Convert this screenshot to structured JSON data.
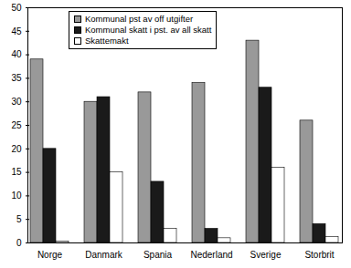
{
  "chart_data": {
    "type": "bar",
    "categories": [
      "Norge",
      "Danmark",
      "Spania",
      "Nederland",
      "Sverige",
      "Storbrit"
    ],
    "series": [
      {
        "name": "Kommunal pst av off utgifter",
        "color": "#999999",
        "values": [
          39,
          30,
          32,
          34,
          43,
          26
        ]
      },
      {
        "name": "Kommunal skatt i pst. av all skatt",
        "color": "#1a1a1a",
        "values": [
          20,
          31,
          13,
          3,
          33,
          4
        ]
      },
      {
        "name": "Skattemakt",
        "color": "#ffffff",
        "values": [
          0.3,
          15,
          3,
          1,
          16,
          1.3
        ]
      }
    ],
    "ylim": [
      0,
      50
    ],
    "yticks": [
      0,
      5,
      10,
      15,
      20,
      25,
      30,
      35,
      40,
      45,
      50
    ],
    "grid": false,
    "legend": "upper left"
  }
}
